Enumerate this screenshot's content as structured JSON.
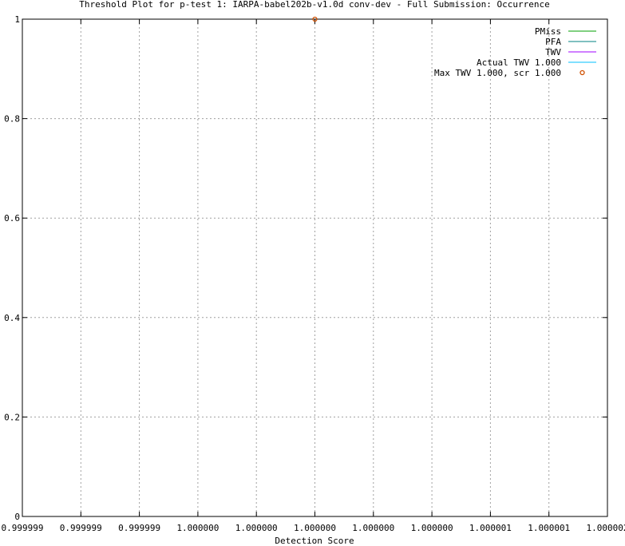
{
  "chart_data": {
    "type": "line",
    "title": "Threshold Plot for p-test 1: IARPA-babel202b-v1.0d conv-dev - Full Submission: Occurrence",
    "xlabel": "Detection Score",
    "ylabel": "",
    "x_tick_labels": [
      "0.999999",
      "0.999999",
      "0.999999",
      "1.000000",
      "1.000000",
      "1.000000",
      "1.000000",
      "1.000000",
      "1.000001",
      "1.000001",
      "1.000002"
    ],
    "y_tick_labels": [
      "0",
      "0.2",
      "0.4",
      "0.6",
      "0.8",
      "1"
    ],
    "y_ticks": [
      0,
      0.2,
      0.4,
      0.6,
      0.8,
      1
    ],
    "ylim": [
      0,
      1
    ],
    "grid": true,
    "legend_position": "top-right",
    "series": [
      {
        "name": "PMiss",
        "color": "#00a000",
        "values": []
      },
      {
        "name": "PFA",
        "color": "#008080",
        "values": []
      },
      {
        "name": "TWV",
        "color": "#a000ff",
        "values": []
      },
      {
        "name": "Actual TWV 1.000",
        "color": "#00c0ff",
        "values": []
      }
    ],
    "points": [
      {
        "name": "Max TWV 1.000, scr 1.000",
        "color": "#d05000",
        "x": 1.0,
        "y": 1.0
      }
    ]
  }
}
